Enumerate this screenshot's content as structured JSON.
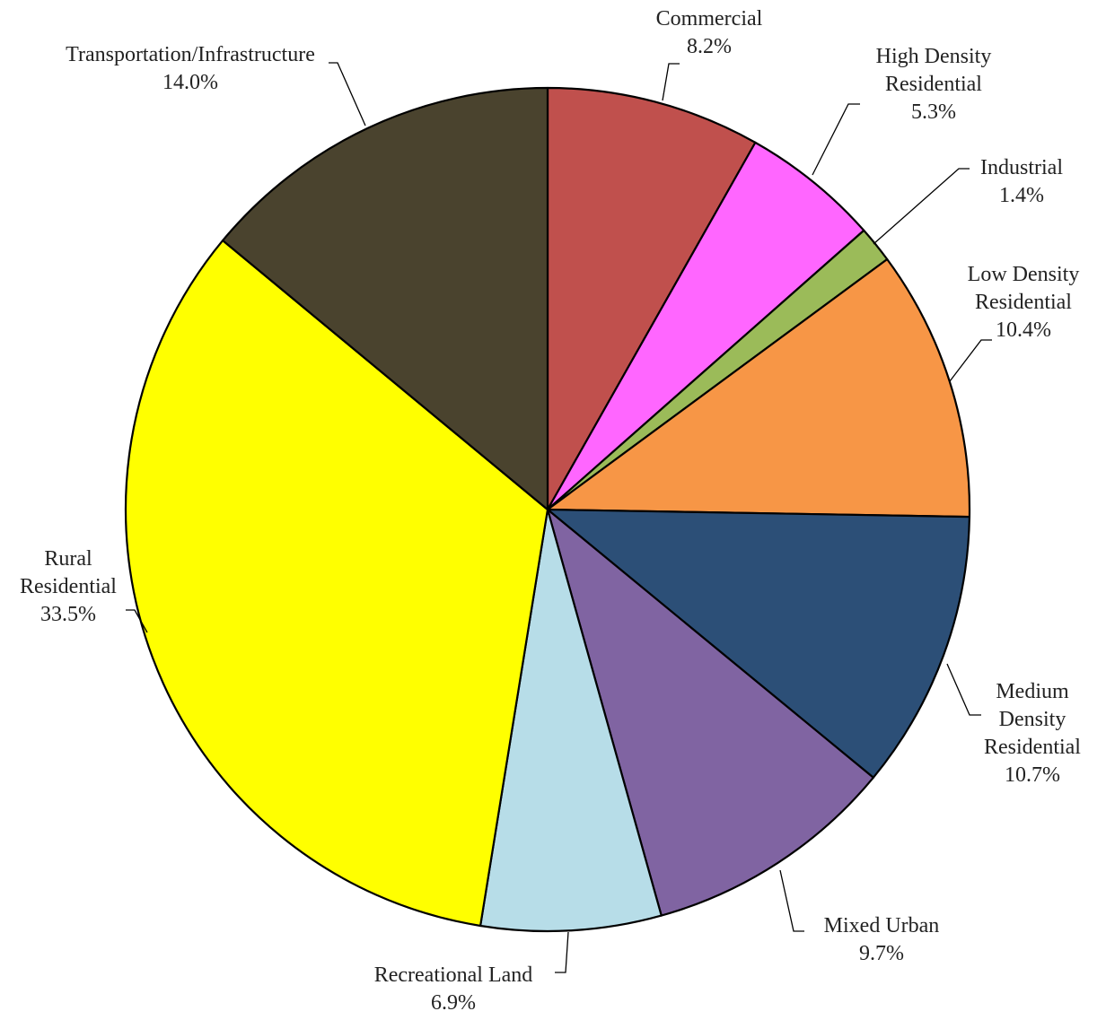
{
  "chart_data": {
    "type": "pie",
    "title": "",
    "start_angle_deg": 0,
    "direction": "clockwise",
    "legend": "none",
    "slices": [
      {
        "label": "Commercial",
        "value": 8.2,
        "value_label": "8.2%",
        "color": "#C0504D"
      },
      {
        "label": "High Density Residential",
        "value": 5.3,
        "value_label": "5.3%",
        "color": "#FF66FF"
      },
      {
        "label": "Industrial",
        "value": 1.4,
        "value_label": "1.4%",
        "color": "#9BBB59"
      },
      {
        "label": "Low Density Residential",
        "value": 10.4,
        "value_label": "10.4%",
        "color": "#F79646"
      },
      {
        "label": "Medium Density Residential",
        "value": 10.7,
        "value_label": "10.7%",
        "color": "#2C4F77"
      },
      {
        "label": "Mixed Urban",
        "value": 9.7,
        "value_label": "9.7%",
        "color": "#8064A2"
      },
      {
        "label": "Recreational Land",
        "value": 6.9,
        "value_label": "6.9%",
        "color": "#B7DDE8"
      },
      {
        "label": "Rural Residential",
        "value": 33.5,
        "value_label": "33.5%",
        "color": "#FFFF00"
      },
      {
        "label": "Transportation/Infrastructure",
        "value": 14.0,
        "value_label": "14.0%",
        "color": "#4A432E"
      }
    ]
  }
}
